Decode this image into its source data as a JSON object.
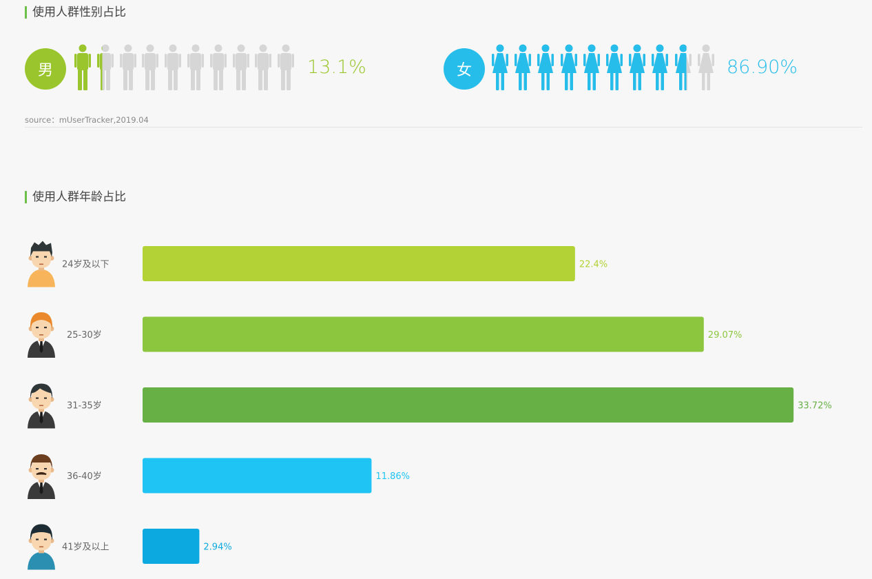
{
  "gender_section": {
    "title": "使用人群性别占比",
    "male": {
      "symbol": "男",
      "percent_label": "13.1%",
      "value": 13.1,
      "color": "#9ac52c"
    },
    "female": {
      "symbol": "女",
      "percent_label": "86.90%",
      "value": 86.9,
      "color": "#26bdea"
    },
    "inactive_color": "#d6d6d6",
    "source": "source：mUserTracker,2019.04"
  },
  "age_section": {
    "title": "使用人群年龄占比"
  },
  "chart_data": {
    "type": "bar",
    "orientation": "horizontal",
    "categories": [
      "24岁及以下",
      "25-30岁",
      "31-35岁",
      "36-40岁",
      "41岁及以上"
    ],
    "values": [
      22.4,
      29.07,
      33.72,
      11.86,
      2.94
    ],
    "value_labels": [
      "22.4%",
      "29.07%",
      "33.72%",
      "11.86%",
      "2.94%"
    ],
    "colors": [
      "#b2d235",
      "#8cc63f",
      "#67b045",
      "#1fc4f4",
      "#0ca9e0"
    ],
    "xlim": [
      0,
      34.5
    ],
    "grid": false
  }
}
